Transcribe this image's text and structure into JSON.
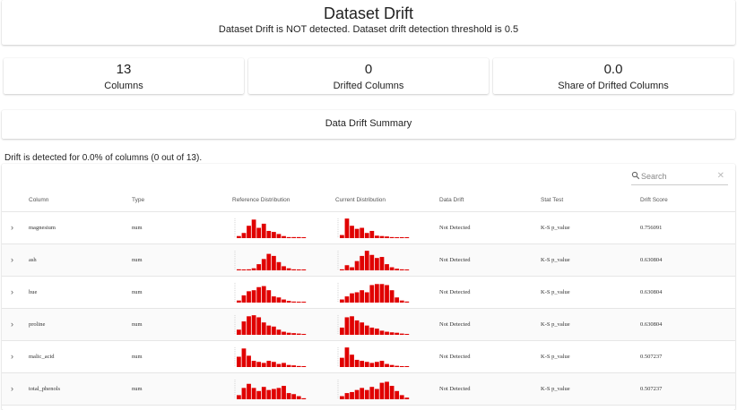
{
  "header": {
    "title": "Dataset Drift",
    "subtitle": "Dataset Drift is NOT detected. Dataset drift detection threshold is 0.5"
  },
  "metrics": [
    {
      "value": "13",
      "label": "Columns"
    },
    {
      "value": "0",
      "label": "Drifted Columns"
    },
    {
      "value": "0.0",
      "label": "Share of Drifted Columns"
    }
  ],
  "summary": {
    "title": "Data Drift Summary",
    "note": "Drift is detected for 0.0% of columns (0 out of 13)."
  },
  "table": {
    "search_placeholder": "Search",
    "columns": [
      "Column",
      "Type",
      "Reference Distribution",
      "Current Distribution",
      "Data Drift",
      "Stat Test",
      "Drift Score"
    ],
    "bar_color": "#e00000",
    "rows": [
      {
        "column": "magnesium",
        "type": "num",
        "data_drift": "Not Detected",
        "stat_test": "K-S p_value",
        "drift_score": "0.756091",
        "reference": [
          0.1,
          0.25,
          0.6,
          0.9,
          0.5,
          0.7,
          0.35,
          0.3,
          0.2,
          0.1,
          0.05,
          0.05,
          0.05,
          0.03
        ],
        "current": [
          0.15,
          0.95,
          0.6,
          0.45,
          0.5,
          0.25,
          0.35,
          0.12,
          0.1,
          0.08,
          0.05,
          0.03,
          0.02,
          0.02
        ]
      },
      {
        "column": "ash",
        "type": "num",
        "data_drift": "Not Detected",
        "stat_test": "K-S p_value",
        "drift_score": "0.630804",
        "reference": [
          0.05,
          0.03,
          0.05,
          0.1,
          0.3,
          0.55,
          0.8,
          0.7,
          0.4,
          0.2,
          0.1,
          0.05,
          0.03,
          0.02
        ],
        "current": [
          0.05,
          0.25,
          0.15,
          0.45,
          0.7,
          0.95,
          0.75,
          0.6,
          0.65,
          0.3,
          0.15,
          0.08,
          0.05,
          0.03
        ]
      },
      {
        "column": "hue",
        "type": "num",
        "data_drift": "Not Detected",
        "stat_test": "K-S p_value",
        "drift_score": "0.630804",
        "reference": [
          0.1,
          0.35,
          0.55,
          0.6,
          0.75,
          0.8,
          0.6,
          0.3,
          0.25,
          0.15,
          0.08,
          0.05,
          0.03,
          0.02
        ],
        "current": [
          0.15,
          0.3,
          0.45,
          0.5,
          0.6,
          0.5,
          0.85,
          0.9,
          0.9,
          0.85,
          0.6,
          0.25,
          0.1,
          0.05
        ]
      },
      {
        "column": "proline",
        "type": "num",
        "data_drift": "Not Detected",
        "stat_test": "K-S p_value",
        "drift_score": "0.630804",
        "reference": [
          0.25,
          0.65,
          0.9,
          0.95,
          0.85,
          0.6,
          0.45,
          0.4,
          0.25,
          0.15,
          0.1,
          0.08,
          0.06,
          0.04
        ],
        "current": [
          0.35,
          0.85,
          0.9,
          0.7,
          0.6,
          0.45,
          0.35,
          0.3,
          0.2,
          0.15,
          0.12,
          0.1,
          0.06,
          0.04
        ]
      },
      {
        "column": "malic_acid",
        "type": "num",
        "data_drift": "Not Detected",
        "stat_test": "K-S p_value",
        "drift_score": "0.507237",
        "reference": [
          0.5,
          0.9,
          0.55,
          0.3,
          0.25,
          0.2,
          0.3,
          0.25,
          0.15,
          0.2,
          0.1,
          0.08,
          0.05,
          0.03
        ],
        "current": [
          0.45,
          0.95,
          0.6,
          0.35,
          0.3,
          0.25,
          0.2,
          0.25,
          0.3,
          0.15,
          0.1,
          0.06,
          0.04,
          0.03
        ]
      },
      {
        "column": "total_phenols",
        "type": "num",
        "data_drift": "Not Detected",
        "stat_test": "K-S p_value",
        "drift_score": "0.507237",
        "reference": [
          0.2,
          0.55,
          0.75,
          0.55,
          0.4,
          0.6,
          0.45,
          0.5,
          0.55,
          0.65,
          0.3,
          0.25,
          0.15,
          0.05
        ],
        "current": [
          0.15,
          0.3,
          0.35,
          0.45,
          0.55,
          0.45,
          0.6,
          0.5,
          0.8,
          0.85,
          0.65,
          0.4,
          0.2,
          0.08
        ]
      }
    ]
  }
}
